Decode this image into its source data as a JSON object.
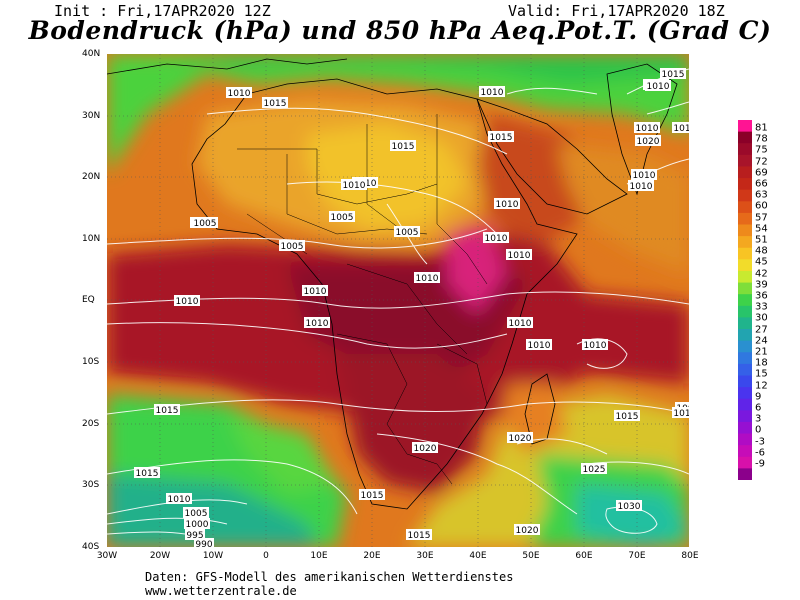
{
  "header": {
    "init": "Init : Fri,17APR2020 12Z",
    "valid": "Valid: Fri,17APR2020 18Z",
    "title": "Bodendruck (hPa) und 850 hPa Aeq.Pot.T. (Grad C)"
  },
  "axes": {
    "x_labels": [
      "30W",
      "20W",
      "10W",
      "0",
      "10E",
      "20E",
      "30E",
      "40E",
      "50E",
      "60E",
      "70E",
      "80E"
    ],
    "y_labels": [
      "40N",
      "30N",
      "20N",
      "10N",
      "EQ",
      "10S",
      "20S",
      "30S",
      "40S"
    ]
  },
  "legend": {
    "values": [
      "81",
      "78",
      "75",
      "72",
      "69",
      "66",
      "63",
      "60",
      "57",
      "54",
      "51",
      "48",
      "45",
      "42",
      "39",
      "36",
      "33",
      "30",
      "27",
      "24",
      "21",
      "18",
      "15",
      "12",
      "9",
      "6",
      "3",
      "0",
      "-3",
      "-6",
      "-9"
    ],
    "colors": [
      "#ff1493",
      "#8b0028",
      "#9b0a2a",
      "#a8142a",
      "#b81e1e",
      "#c42818",
      "#d03818",
      "#dc5018",
      "#e66a1a",
      "#ee8a1c",
      "#f4a820",
      "#f8c424",
      "#f2dc2a",
      "#c8ea30",
      "#7ede3a",
      "#3ed24a",
      "#28c46a",
      "#20b48c",
      "#22a4b0",
      "#2a90d0",
      "#3078e0",
      "#3560e8",
      "#3a48ec",
      "#4a34ee",
      "#6024e8",
      "#7a18de",
      "#9610d2",
      "#b00cc4",
      "#c60cb8",
      "#d810aa",
      "#8b008b"
    ]
  },
  "isobar_labels": [
    "1010",
    "1015",
    "1015",
    "1010",
    "1015",
    "1005",
    "1010",
    "1020",
    "1010",
    "1010",
    "1005",
    "1005",
    "1005",
    "1010",
    "1005",
    "1010",
    "1010",
    "1010",
    "1010",
    "1010",
    "1010",
    "1010",
    "1010",
    "1010",
    "1010",
    "1010",
    "1015",
    "1015",
    "1020",
    "1020",
    "1015",
    "1025",
    "1030",
    "1015",
    "1010",
    "1005",
    "1000",
    "995",
    "990",
    "1015",
    "1020",
    "1015",
    "1015",
    "101",
    "100",
    "1010",
    "101"
  ],
  "footer": {
    "line1": "Daten: GFS-Modell des amerikanischen Wetterdienstes",
    "line2": "www.wetterzentrale.de"
  }
}
